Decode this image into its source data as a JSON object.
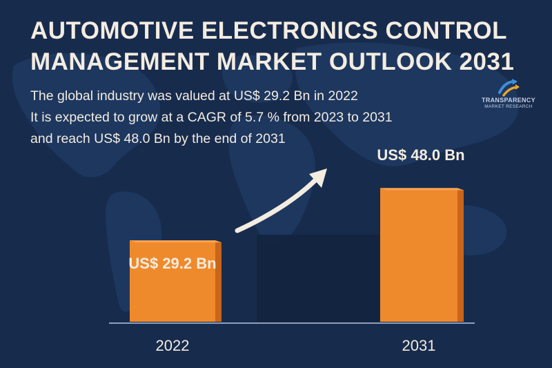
{
  "title_lines": [
    "AUTOMOTIVE ELECTRONICS CONTROL",
    "MANAGEMENT MARKET OUTLOOK 2031"
  ],
  "description_lines": [
    "The global industry was valued at US$ 29.2 Bn in 2022",
    "It is expected to grow at a CAGR of 5.7 % from 2023 to 2031",
    "and reach US$ 48.0 Bn by the end of 2031"
  ],
  "logo": {
    "line1": "TRANSPARENCY",
    "line2": "MARKET RESEARCH"
  },
  "colors": {
    "background": "#172b4d",
    "map": "#1f3a63",
    "bar_front": "#ef8a2c",
    "bar_side": "#c9661a",
    "bar_top": "#f6a454",
    "text": "#f3ece0",
    "arrow": "#f3ece0"
  },
  "chart_data": {
    "type": "bar",
    "categories": [
      "2022",
      "2031"
    ],
    "values": [
      29.2,
      48.0
    ],
    "data_labels": [
      "US$ 29.2 Bn",
      "US$ 48.0 Bn"
    ],
    "unit": "US$ Bn",
    "ylim": [
      0,
      57
    ],
    "grid": false,
    "growth_arrow": true
  }
}
